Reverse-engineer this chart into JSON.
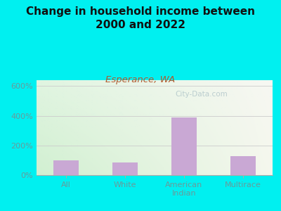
{
  "title": "Change in household income between\n2000 and 2022",
  "subtitle": "Esperance, WA",
  "categories": [
    "All",
    "White",
    "American\nIndian",
    "Multirace"
  ],
  "values": [
    100,
    83,
    390,
    130
  ],
  "bar_color": "#c9a8d4",
  "title_fontsize": 11,
  "subtitle_fontsize": 9.5,
  "subtitle_color": "#b05a2f",
  "tick_color": "#6a9a9a",
  "background_color": "#00f0f0",
  "yticks": [
    0,
    200,
    400,
    600
  ],
  "ylabels": [
    "0%",
    "200%",
    "400%",
    "600%"
  ],
  "ylim": [
    0,
    640
  ],
  "watermark": "City-Data.com",
  "gradient_topleft": [
    0.88,
    0.96,
    0.88,
    1.0
  ],
  "gradient_topright": [
    0.97,
    0.97,
    0.95,
    1.0
  ],
  "gradient_bottomleft": [
    0.82,
    0.94,
    0.82,
    1.0
  ],
  "gradient_bottomright": [
    0.96,
    0.97,
    0.93,
    1.0
  ]
}
